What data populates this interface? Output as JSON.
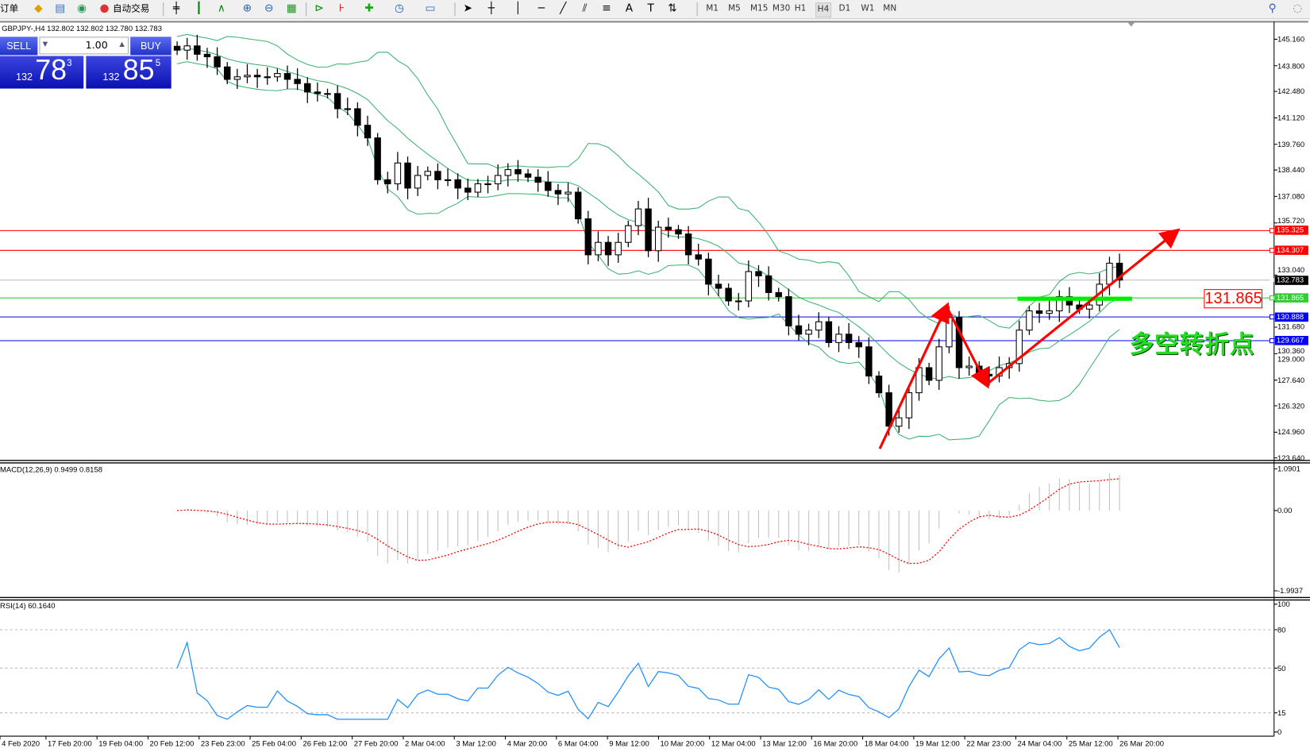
{
  "toolbar": {
    "new_order": "订单",
    "auto_trading": "自动交易",
    "timeframes": [
      "M1",
      "M5",
      "M15",
      "M30",
      "H1",
      "H4",
      "D1",
      "W1",
      "MN"
    ],
    "active_timeframe": "H4",
    "icons": [
      "new-order-icon",
      "folder-icon",
      "profiles-icon",
      "signals-icon",
      "auto-trading-icon",
      "bar-chart-icon",
      "candlestick-icon",
      "line-chart-icon",
      "zoom-in-icon",
      "zoom-out-icon",
      "tile-icon",
      "autoscroll-icon",
      "chart-shift-icon",
      "indicators-icon",
      "periods-icon",
      "templates-icon",
      "cursor-icon",
      "crosshair-icon",
      "vertical-line-icon",
      "horizontal-line-icon",
      "trendline-icon",
      "channel-icon",
      "fibo-icon",
      "text-icon",
      "label-icon",
      "arrows-icon",
      "search-icon",
      "chat-icon"
    ]
  },
  "chart": {
    "title": "GBPJPY-,H4  132.802 132.802 132.780 132.783",
    "one_click": {
      "sell_label": "SELL",
      "buy_label": "BUY",
      "volume": "1.00",
      "sell_prefix": "132",
      "sell_big": "78",
      "sell_pip": "3",
      "buy_prefix": "132",
      "buy_big": "85",
      "buy_pip": "5"
    },
    "annotation_price": "131.865",
    "annotation_text": "多空转折点",
    "macd_label": "MACD(12,26,9) 0.9499 0.8158",
    "rsi_label": "RSI(14) 60.1640"
  },
  "colors": {
    "bull": "#ffffff",
    "bear": "#000000",
    "bands": "#3cb371",
    "macd_hist": "#c0c0c0",
    "macd_signal": "#ff0000",
    "rsi": "#1e90ff",
    "arrow": "#ff0000",
    "support_bar": "#00ee00"
  },
  "chart_data": {
    "type": "candlestick",
    "symbol": "GBPJPY-",
    "timeframe": "H4",
    "ylim": [
      123.64,
      145.16
    ],
    "closes": [
      144.6,
      144.82,
      144.39,
      144.26,
      143.74,
      143.1,
      143.23,
      143.31,
      143.23,
      143.23,
      143.4,
      143.1,
      142.88,
      142.45,
      142.37,
      142.37,
      141.59,
      141.59,
      140.74,
      140.09,
      137.94,
      137.73,
      138.8,
      137.51,
      138.16,
      138.37,
      137.94,
      137.94,
      137.51,
      137.3,
      137.73,
      137.73,
      138.16,
      138.46,
      138.24,
      138.07,
      137.81,
      137.39,
      137.21,
      137.3,
      135.93,
      134.08,
      134.72,
      134.08,
      134.72,
      135.58,
      136.44,
      134.29,
      135.5,
      135.37,
      135.15,
      134.08,
      133.86,
      132.57,
      132.36,
      131.71,
      131.71,
      133.22,
      133.0,
      132.14,
      131.93,
      130.43,
      130.0,
      130.21,
      130.64,
      129.57,
      130.0,
      129.57,
      129.35,
      127.85,
      126.99,
      125.27,
      125.7,
      126.99,
      128.28,
      127.63,
      129.35,
      130.86,
      128.28,
      128.36,
      127.94,
      127.85,
      128.28,
      128.49,
      130.21,
      131.2,
      131.07,
      131.2,
      131.93,
      131.5,
      131.29,
      131.5,
      132.57,
      133.65,
      132.783
    ],
    "price_ticks": [
      "145.160",
      "143.800",
      "142.480",
      "141.120",
      "139.760",
      "138.440",
      "137.080",
      "135.720",
      "133.040",
      "131.680",
      "130.360",
      "129.000",
      "127.640",
      "126.320",
      "124.960",
      "123.640"
    ],
    "horizontal_lines": [
      {
        "price": 135.325,
        "label": "135.325",
        "color": "#ff0000"
      },
      {
        "price": 134.307,
        "label": "134.307",
        "color": "#ff0000"
      },
      {
        "price": 132.783,
        "label": "132.783",
        "color": "#000000",
        "line": "#c0c0c0"
      },
      {
        "price": 131.865,
        "label": "131.865",
        "color": "#33cc33"
      },
      {
        "price": 130.888,
        "label": "130.888",
        "color": "#0000ff"
      },
      {
        "price": 129.667,
        "label": "129.667",
        "color": "#0000ff"
      }
    ],
    "macd_ticks": [
      "1.0901",
      "0.00",
      "-1.9937"
    ],
    "rsi_ticks": [
      "100",
      "80",
      "50",
      "15",
      "0"
    ],
    "time_labels": [
      "4 Feb 2020",
      "17 Feb 20:00",
      "19 Feb 04:00",
      "20 Feb 12:00",
      "23 Feb 23:00",
      "25 Feb 04:00",
      "26 Feb 12:00",
      "27 Feb 20:00",
      "2 Mar 04:00",
      "3 Mar 12:00",
      "4 Mar 20:00",
      "6 Mar 04:00",
      "9 Mar 12:00",
      "10 Mar 20:00",
      "12 Mar 04:00",
      "13 Mar 12:00",
      "16 Mar 20:00",
      "18 Mar 04:00",
      "19 Mar 12:00",
      "22 Mar 23:00",
      "24 Mar 04:00",
      "25 Mar 12:00",
      "26 Mar 20:00"
    ]
  }
}
